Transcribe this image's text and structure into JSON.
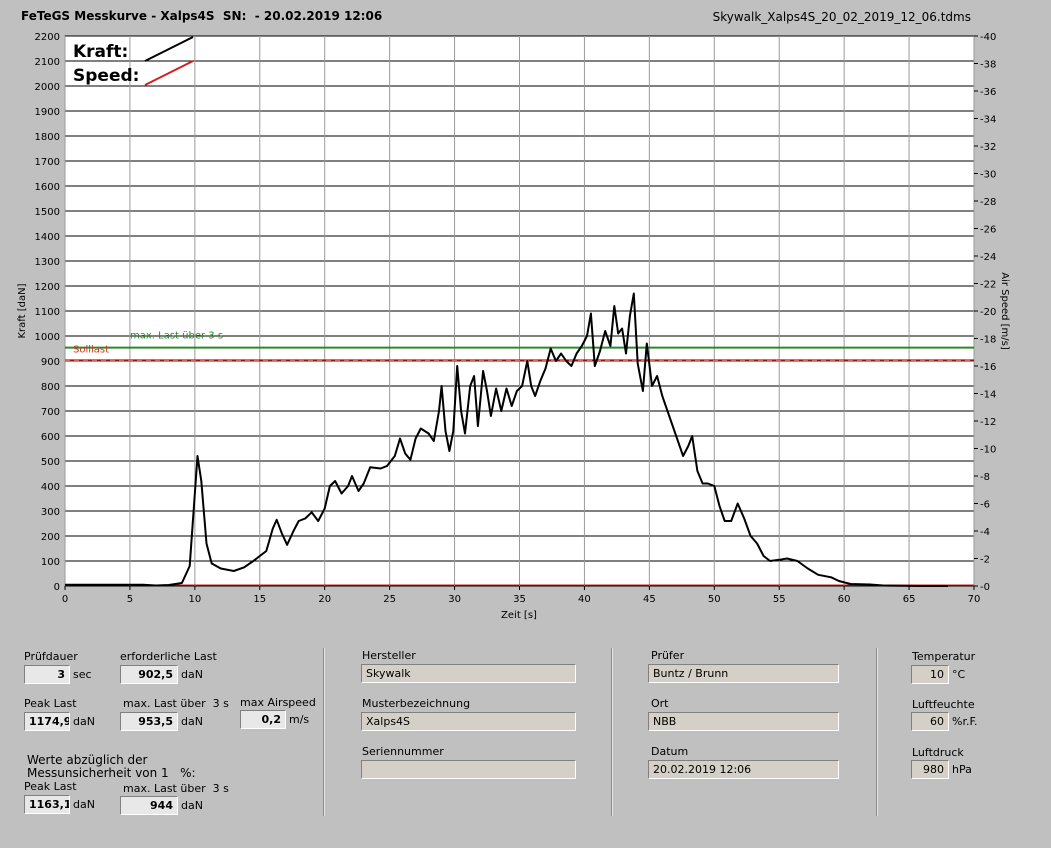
{
  "header": {
    "title": "FeTeGS Messkurve - Xalps4S  SN:  - 20.02.2019 12:06",
    "file": "Skywalk_Xalps4S_20_02_2019_12_06.tdms"
  },
  "chart_data": {
    "type": "line",
    "xlabel": "Zeit [s]",
    "ylabel": "Kraft [daN]",
    "y2label": "Air Speed [m/s]",
    "xlim": [
      0,
      70
    ],
    "ylim": [
      0,
      2200
    ],
    "y2lim": [
      0,
      40
    ],
    "x_ticks": [
      "0",
      "5",
      "10",
      "15",
      "20",
      "25",
      "30",
      "35",
      "40",
      "45",
      "50",
      "55",
      "60",
      "65",
      "70"
    ],
    "y_ticks": [
      "0",
      "100",
      "200",
      "300",
      "400",
      "500",
      "600",
      "700",
      "800",
      "900",
      "1000",
      "1100",
      "1200",
      "1300",
      "1400",
      "1500",
      "1600",
      "1700",
      "1800",
      "1900",
      "2000",
      "2100",
      "2200"
    ],
    "y2_ticks": [
      "0",
      "2",
      "4",
      "6",
      "8",
      "10",
      "12",
      "14",
      "16",
      "18",
      "20",
      "22",
      "24",
      "26",
      "28",
      "30",
      "32",
      "34",
      "36",
      "38",
      "40"
    ],
    "grid": true,
    "legend": {
      "position": "top-left",
      "kraft": "Kraft:",
      "speed": "Speed:"
    },
    "ref_lines": [
      {
        "name": "max. Last über  3 s",
        "y": 953.5,
        "color": "#2a8a2a"
      },
      {
        "name": "Solllast",
        "y": 902.5,
        "color": "#cc3322"
      }
    ],
    "series": [
      {
        "name": "Kraft",
        "color": "#000000",
        "points": [
          [
            0,
            5
          ],
          [
            6,
            5
          ],
          [
            7,
            2
          ],
          [
            8,
            4
          ],
          [
            9,
            12
          ],
          [
            9.6,
            80
          ],
          [
            9.9,
            300
          ],
          [
            10.2,
            520
          ],
          [
            10.5,
            420
          ],
          [
            10.9,
            170
          ],
          [
            11.3,
            90
          ],
          [
            12,
            70
          ],
          [
            13,
            60
          ],
          [
            13.8,
            75
          ],
          [
            14.5,
            100
          ],
          [
            15.5,
            140
          ],
          [
            16,
            230
          ],
          [
            16.3,
            265
          ],
          [
            16.7,
            210
          ],
          [
            17.1,
            165
          ],
          [
            17.6,
            220
          ],
          [
            18,
            260
          ],
          [
            18.5,
            270
          ],
          [
            19,
            295
          ],
          [
            19.5,
            260
          ],
          [
            20,
            310
          ],
          [
            20.4,
            400
          ],
          [
            20.8,
            420
          ],
          [
            21.3,
            370
          ],
          [
            21.8,
            400
          ],
          [
            22.1,
            440
          ],
          [
            22.6,
            380
          ],
          [
            23,
            410
          ],
          [
            23.5,
            475
          ],
          [
            24.3,
            470
          ],
          [
            24.8,
            480
          ],
          [
            25.4,
            520
          ],
          [
            25.8,
            590
          ],
          [
            26.2,
            530
          ],
          [
            26.6,
            505
          ],
          [
            27,
            590
          ],
          [
            27.4,
            630
          ],
          [
            28,
            610
          ],
          [
            28.4,
            580
          ],
          [
            28.8,
            700
          ],
          [
            29,
            800
          ],
          [
            29.3,
            620
          ],
          [
            29.6,
            540
          ],
          [
            29.9,
            620
          ],
          [
            30.2,
            880
          ],
          [
            30.5,
            700
          ],
          [
            30.8,
            610
          ],
          [
            31.2,
            800
          ],
          [
            31.5,
            840
          ],
          [
            31.8,
            640
          ],
          [
            32.2,
            860
          ],
          [
            32.5,
            780
          ],
          [
            32.8,
            680
          ],
          [
            33.2,
            790
          ],
          [
            33.6,
            700
          ],
          [
            34,
            790
          ],
          [
            34.4,
            720
          ],
          [
            34.8,
            780
          ],
          [
            35.2,
            800
          ],
          [
            35.6,
            900
          ],
          [
            35.9,
            800
          ],
          [
            36.2,
            760
          ],
          [
            36.6,
            820
          ],
          [
            37,
            870
          ],
          [
            37.4,
            950
          ],
          [
            37.8,
            900
          ],
          [
            38.2,
            930
          ],
          [
            38.6,
            900
          ],
          [
            39,
            880
          ],
          [
            39.4,
            930
          ],
          [
            39.8,
            960
          ],
          [
            40.2,
            1000
          ],
          [
            40.5,
            1090
          ],
          [
            40.8,
            880
          ],
          [
            41.2,
            940
          ],
          [
            41.6,
            1020
          ],
          [
            42,
            960
          ],
          [
            42.3,
            1120
          ],
          [
            42.6,
            1010
          ],
          [
            42.9,
            1030
          ],
          [
            43.2,
            930
          ],
          [
            43.5,
            1080
          ],
          [
            43.8,
            1170
          ],
          [
            44.1,
            890
          ],
          [
            44.5,
            780
          ],
          [
            44.8,
            970
          ],
          [
            45.2,
            800
          ],
          [
            45.6,
            840
          ],
          [
            46,
            760
          ],
          [
            46.4,
            700
          ],
          [
            46.8,
            640
          ],
          [
            47.2,
            580
          ],
          [
            47.6,
            520
          ],
          [
            48,
            560
          ],
          [
            48.3,
            600
          ],
          [
            48.7,
            460
          ],
          [
            49.1,
            410
          ],
          [
            49.5,
            410
          ],
          [
            50,
            400
          ],
          [
            50.4,
            320
          ],
          [
            50.8,
            260
          ],
          [
            51.3,
            260
          ],
          [
            51.8,
            330
          ],
          [
            52.3,
            270
          ],
          [
            52.8,
            200
          ],
          [
            53.3,
            170
          ],
          [
            53.8,
            120
          ],
          [
            54.3,
            100
          ],
          [
            55,
            105
          ],
          [
            55.6,
            110
          ],
          [
            56.4,
            100
          ],
          [
            57.2,
            70
          ],
          [
            58,
            45
          ],
          [
            59,
            35
          ],
          [
            59.6,
            20
          ],
          [
            60.5,
            8
          ],
          [
            62,
            6
          ],
          [
            63,
            2
          ],
          [
            66,
            0
          ],
          [
            68,
            0
          ]
        ]
      }
    ]
  },
  "panel": {
    "pruefdauer": {
      "label": "Prüfdauer",
      "value": "3",
      "unit": "sec"
    },
    "erf_last": {
      "label": "erforderliche Last",
      "value": "902,5",
      "unit": "daN"
    },
    "peak_last": {
      "label": "Peak Last",
      "value": "1174,9",
      "unit": "daN"
    },
    "max_last": {
      "label": "max. Last über  3 s",
      "value": "953,5",
      "unit": "daN"
    },
    "max_airspeed": {
      "label": "max Airspeed",
      "value": "0,2",
      "unit": "m/s"
    },
    "werte_note": "Werte abzüglich der\nMessunsicherheit von 1   %:",
    "peak_last2": {
      "label": "Peak Last",
      "value": "1163,1",
      "unit": "daN"
    },
    "max_last2": {
      "label": "max. Last über  3 s",
      "value": "944",
      "unit": "daN"
    },
    "hersteller": {
      "label": "Hersteller",
      "value": "Skywalk"
    },
    "muster": {
      "label": "Musterbezeichnung",
      "value": "Xalps4S"
    },
    "serien": {
      "label": "Seriennummer",
      "value": ""
    },
    "pruefer": {
      "label": "Prüfer",
      "value": "Buntz / Brunn"
    },
    "ort": {
      "label": "Ort",
      "value": "NBB"
    },
    "datum": {
      "label": "Datum",
      "value": "20.02.2019 12:06"
    },
    "temperatur": {
      "label": "Temperatur",
      "value": "10",
      "unit": "°C"
    },
    "luftfeuchte": {
      "label": "Luftfeuchte",
      "value": "60",
      "unit": "%r.F."
    },
    "luftdruck": {
      "label": "Luftdruck",
      "value": "980",
      "unit": "hPa"
    }
  }
}
